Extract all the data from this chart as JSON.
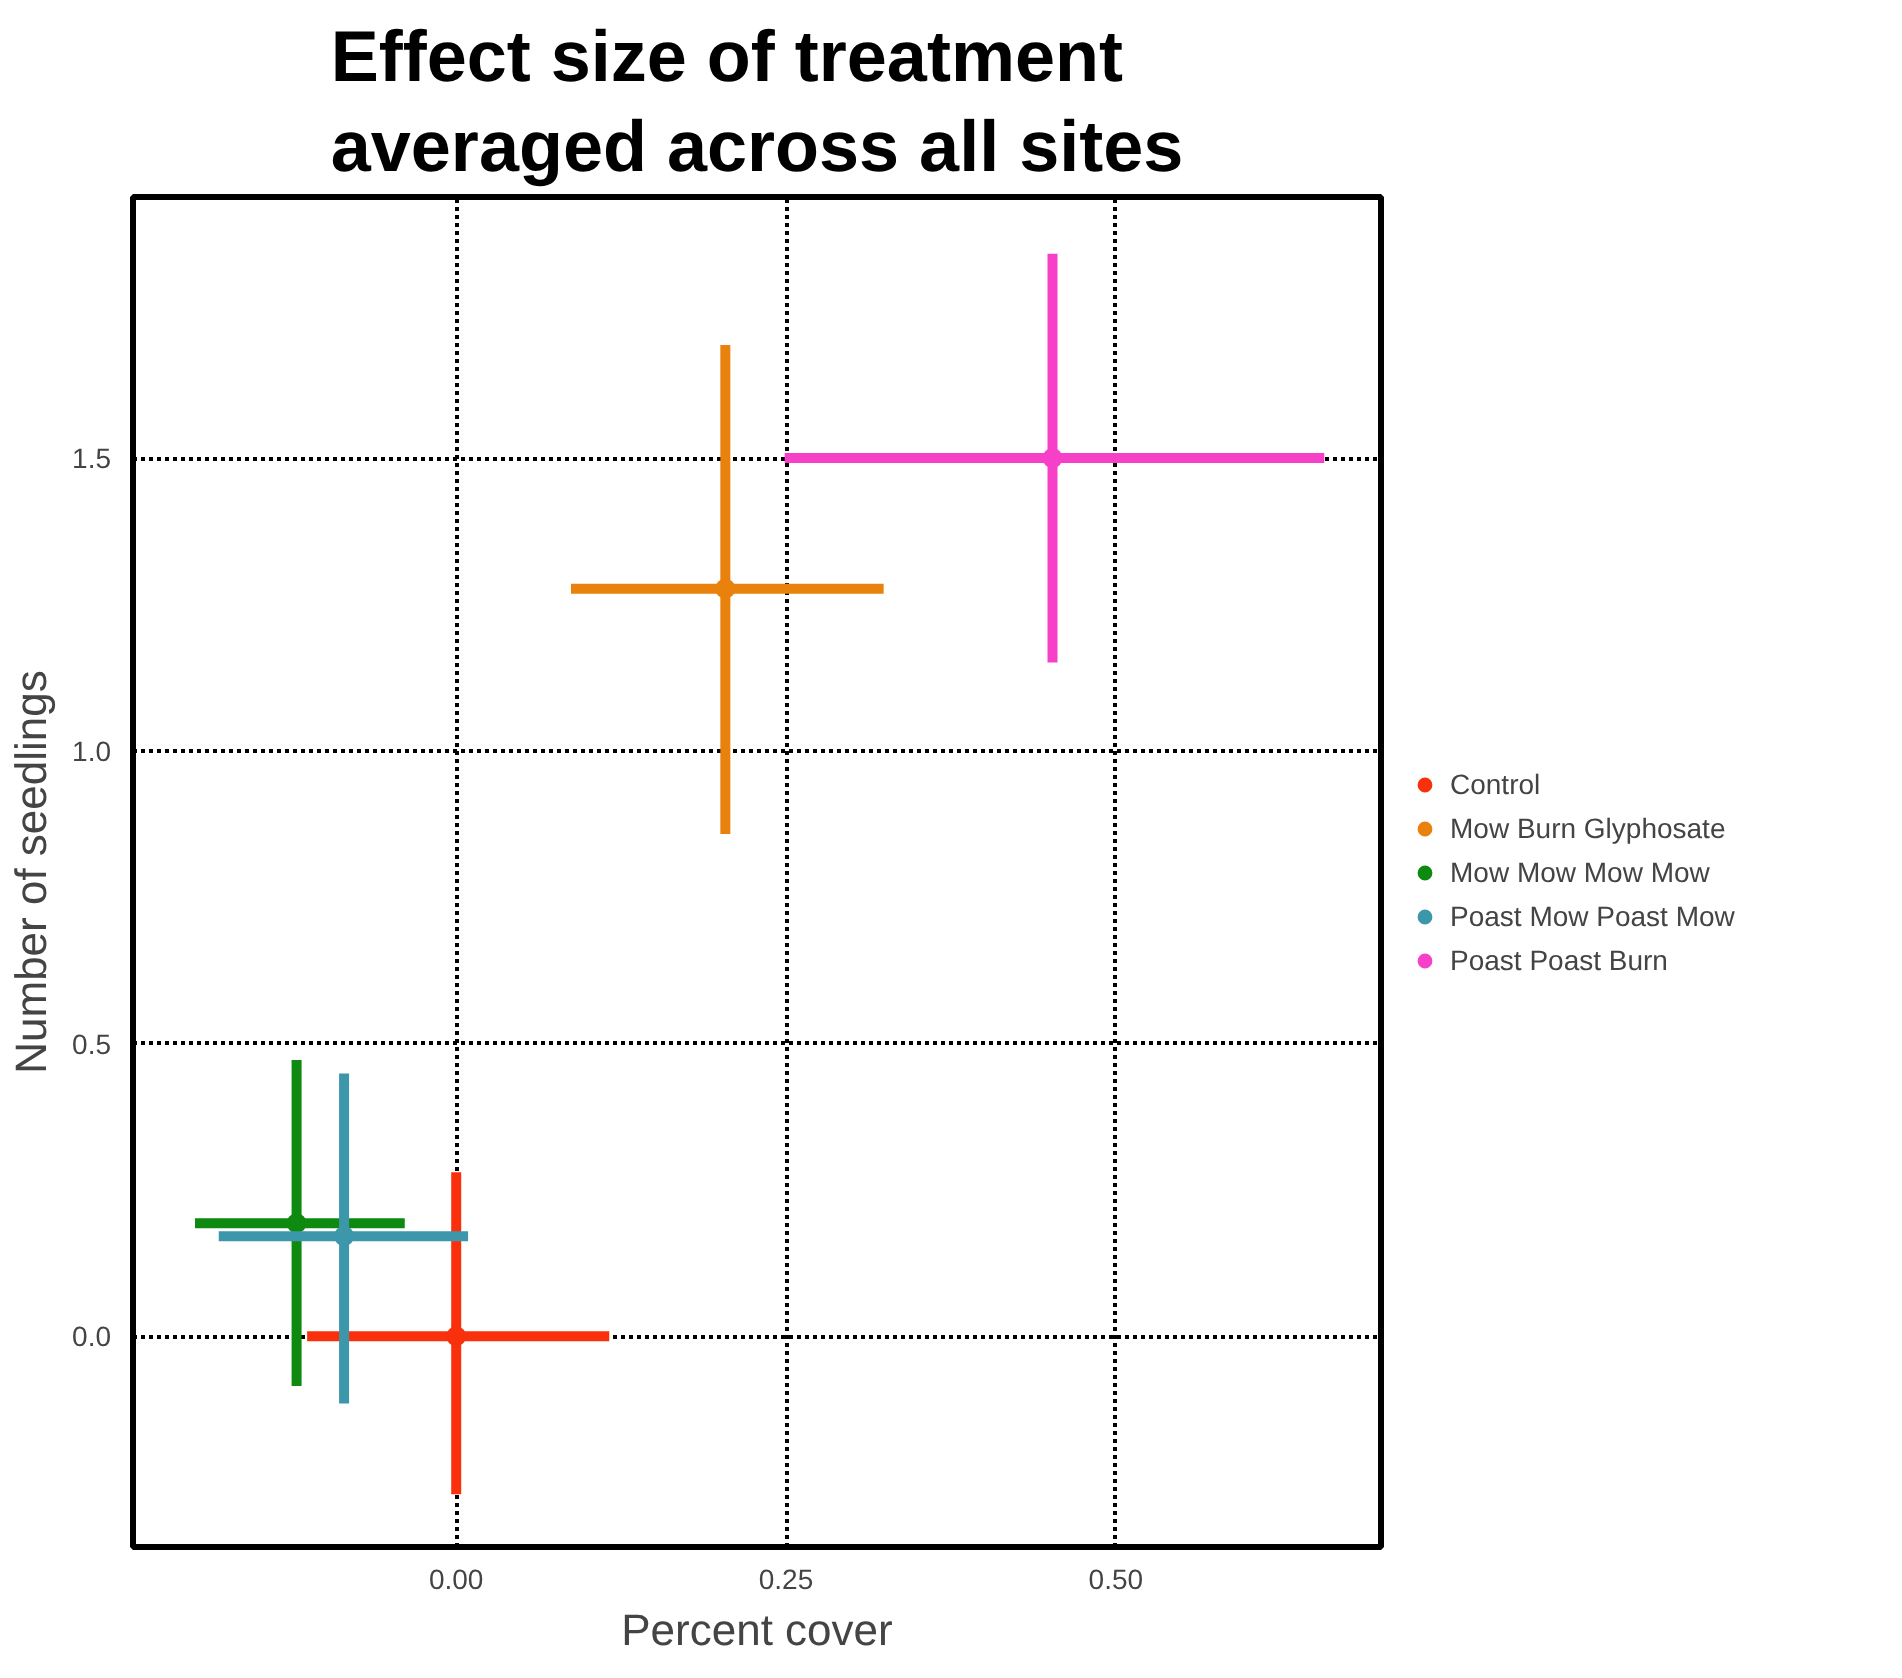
{
  "chart_data": {
    "type": "scatter",
    "title": "Effect size of treatment averaged across all sites",
    "xlabel": "Percent cover",
    "ylabel": "Number of seedlings",
    "xlim": [
      -0.245,
      0.701
    ],
    "ylim": [
      -0.36,
      1.946
    ],
    "xticks": [
      {
        "value": 0,
        "label": "0.00"
      },
      0.25,
      {
        "value": 0.5,
        "label": "0.50"
      }
    ],
    "yticks": [
      {
        "value": 0,
        "label": "0.0"
      },
      0.5,
      {
        "value": 1,
        "label": "1.0"
      },
      1.5
    ],
    "grid": true,
    "legend": "right",
    "marker": "circle",
    "series": [
      {
        "name": "Control",
        "color": "#f8300c",
        "x": [
          0.0
        ],
        "values": [
          0.0
        ],
        "xerrors": [
          [
            -0.113,
            0.116
          ]
        ],
        "errors": [
          [
            -0.27,
            0.28
          ]
        ]
      },
      {
        "name": "Mow Burn Glyphosate",
        "color": "#e8820c",
        "x": [
          0.204
        ],
        "values": [
          1.277
        ],
        "xerrors": [
          [
            0.087,
            0.324
          ]
        ],
        "errors": [
          [
            0.858,
            1.693
          ]
        ]
      },
      {
        "name": "Mow Mow Mow Mow",
        "color": "#0e8a10",
        "x": [
          -0.121
        ],
        "values": [
          0.193
        ],
        "xerrors": [
          [
            -0.198,
            -0.039
          ]
        ],
        "errors": [
          [
            -0.085,
            0.472
          ]
        ]
      },
      {
        "name": "Poast Mow Poast Mow",
        "color": "#3d97aa",
        "x": [
          -0.085
        ],
        "values": [
          0.171
        ],
        "xerrors": [
          [
            -0.18,
            0.009
          ]
        ],
        "errors": [
          [
            -0.115,
            0.449
          ]
        ]
      },
      {
        "name": "Poast Poast Burn",
        "color": "#f740c8",
        "x": [
          0.452
        ],
        "values": [
          1.5
        ],
        "xerrors": [
          [
            0.249,
            0.658
          ]
        ],
        "errors": [
          [
            1.151,
            1.849
          ]
        ]
      }
    ]
  }
}
